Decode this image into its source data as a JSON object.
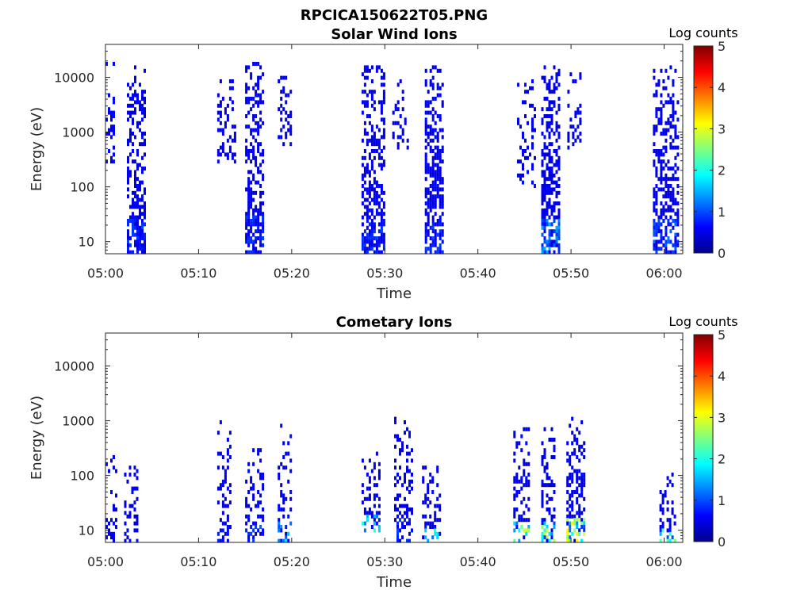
{
  "figure_title": "RPCICA150622T05.PNG",
  "chart_data": [
    {
      "type": "heatmap",
      "title": "Solar Wind Ions",
      "xlabel": "Time",
      "ylabel": "Energy (eV)",
      "xlim": [
        "05:00",
        "06:02"
      ],
      "x_ticks": [
        "05:00",
        "05:10",
        "05:20",
        "05:30",
        "05:40",
        "05:50",
        "06:00"
      ],
      "y_scale": "log",
      "ylim": [
        6,
        40000
      ],
      "y_ticks": [
        10,
        100,
        1000,
        10000
      ],
      "y_tick_labels": [
        "10",
        "100",
        "1000",
        "10000"
      ],
      "colorbar": {
        "label": "Log counts",
        "range": [
          0,
          5
        ],
        "ticks": [
          "0",
          "1",
          "2",
          "3",
          "4",
          "5"
        ],
        "colormap": "jet"
      },
      "bursts": [
        {
          "start": "05:00.0",
          "end": "05:01.0",
          "emin": 300,
          "emax": 20000,
          "peak": 0.35,
          "density": 0.35
        },
        {
          "start": "05:02.3",
          "end": "05:04.1",
          "emin": 6,
          "emax": 18000,
          "peak": 0.6,
          "density": 0.75
        },
        {
          "start": "05:12.0",
          "end": "05:14.0",
          "emin": 300,
          "emax": 10000,
          "peak": 0.35,
          "density": 0.35
        },
        {
          "start": "05:15.0",
          "end": "05:16.9",
          "emin": 6,
          "emax": 20000,
          "peak": 0.55,
          "density": 0.7
        },
        {
          "start": "05:18.5",
          "end": "05:20.0",
          "emin": 500,
          "emax": 12000,
          "peak": 0.35,
          "density": 0.4
        },
        {
          "start": "05:27.5",
          "end": "05:29.8",
          "emin": 6,
          "emax": 18000,
          "peak": 0.6,
          "density": 0.7
        },
        {
          "start": "05:30.8",
          "end": "05:32.5",
          "emin": 500,
          "emax": 10000,
          "peak": 0.3,
          "density": 0.3
        },
        {
          "start": "05:34.3",
          "end": "05:36.3",
          "emin": 6,
          "emax": 18000,
          "peak": 0.7,
          "density": 0.75
        },
        {
          "start": "05:44.2",
          "end": "05:46.2",
          "emin": 100,
          "emax": 10000,
          "peak": 0.35,
          "density": 0.35
        },
        {
          "start": "05:46.8",
          "end": "05:48.6",
          "emin": 6,
          "emax": 18000,
          "peak": 1.2,
          "density": 0.75
        },
        {
          "start": "05:49.6",
          "end": "05:51.0",
          "emin": 500,
          "emax": 12000,
          "peak": 0.3,
          "density": 0.35
        },
        {
          "start": "05:58.8",
          "end": "06:01.5",
          "emin": 6,
          "emax": 18000,
          "peak": 0.9,
          "density": 0.7
        }
      ]
    },
    {
      "type": "heatmap",
      "title": "Cometary Ions",
      "xlabel": "Time",
      "ylabel": "Energy (eV)",
      "xlim": [
        "05:00",
        "06:02"
      ],
      "x_ticks": [
        "05:00",
        "05:10",
        "05:20",
        "05:30",
        "05:40",
        "05:50",
        "06:00"
      ],
      "y_scale": "log",
      "ylim": [
        6,
        40000
      ],
      "y_ticks": [
        10,
        100,
        1000,
        10000
      ],
      "y_tick_labels": [
        "10",
        "100",
        "1000",
        "10000"
      ],
      "colorbar": {
        "label": "Log counts",
        "range": [
          0,
          5
        ],
        "ticks": [
          "0",
          "1",
          "2",
          "3",
          "4",
          "5"
        ],
        "colormap": "jet"
      },
      "bursts": [
        {
          "start": "05:00.0",
          "end": "05:01.2",
          "emin": 6,
          "emax": 250,
          "peak": 0.3,
          "density": 0.35
        },
        {
          "start": "05:02.0",
          "end": "05:03.5",
          "emin": 6,
          "emax": 150,
          "peak": 0.3,
          "density": 0.35
        },
        {
          "start": "05:12.0",
          "end": "05:13.5",
          "emin": 6,
          "emax": 1000,
          "peak": 0.5,
          "density": 0.4
        },
        {
          "start": "05:15.0",
          "end": "05:16.8",
          "emin": 6,
          "emax": 400,
          "peak": 0.8,
          "density": 0.4
        },
        {
          "start": "05:18.5",
          "end": "05:20.0",
          "emin": 6,
          "emax": 900,
          "peak": 2.0,
          "density": 0.4
        },
        {
          "start": "05:27.5",
          "end": "05:29.5",
          "emin": 10,
          "emax": 300,
          "peak": 2.0,
          "density": 0.45
        },
        {
          "start": "05:31.0",
          "end": "05:32.8",
          "emin": 6,
          "emax": 1200,
          "peak": 0.6,
          "density": 0.45
        },
        {
          "start": "05:34.0",
          "end": "05:35.8",
          "emin": 6,
          "emax": 150,
          "peak": 1.8,
          "density": 0.45
        },
        {
          "start": "05:43.8",
          "end": "05:45.5",
          "emin": 6,
          "emax": 800,
          "peak": 2.8,
          "density": 0.55
        },
        {
          "start": "05:46.8",
          "end": "05:48.2",
          "emin": 6,
          "emax": 800,
          "peak": 2.8,
          "density": 0.55
        },
        {
          "start": "05:49.5",
          "end": "05:51.5",
          "emin": 6,
          "emax": 1200,
          "peak": 3.1,
          "density": 0.6
        },
        {
          "start": "05:59.5",
          "end": "06:01.2",
          "emin": 6,
          "emax": 120,
          "peak": 2.2,
          "density": 0.5
        }
      ]
    }
  ]
}
